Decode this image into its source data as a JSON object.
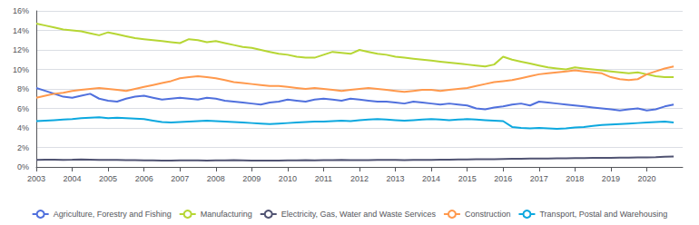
{
  "chart_data": {
    "type": "line",
    "x": [
      2003,
      2003.25,
      2003.5,
      2003.75,
      2004,
      2004.25,
      2004.5,
      2004.75,
      2005,
      2005.25,
      2005.5,
      2005.75,
      2006,
      2006.25,
      2006.5,
      2006.75,
      2007,
      2007.25,
      2007.5,
      2007.75,
      2008,
      2008.25,
      2008.5,
      2008.75,
      2009,
      2009.25,
      2009.5,
      2009.75,
      2010,
      2010.25,
      2010.5,
      2010.75,
      2011,
      2011.25,
      2011.5,
      2011.75,
      2012,
      2012.25,
      2012.5,
      2012.75,
      2013,
      2013.25,
      2013.5,
      2013.75,
      2014,
      2014.25,
      2014.5,
      2014.75,
      2015,
      2015.25,
      2015.5,
      2015.75,
      2016,
      2016.25,
      2016.5,
      2016.75,
      2017,
      2017.25,
      2017.5,
      2017.75,
      2018,
      2018.25,
      2018.5,
      2018.75,
      2019,
      2019.25,
      2019.5,
      2019.75,
      2020,
      2020.25,
      2020.5,
      2020.75
    ],
    "series": [
      {
        "name": "Agriculture, Forestry and Fishing",
        "values": [
          8.1,
          7.8,
          7.5,
          7.2,
          7.1,
          7.3,
          7.5,
          7.0,
          6.8,
          6.7,
          7.0,
          7.2,
          7.3,
          7.1,
          6.9,
          7.0,
          7.1,
          7.0,
          6.9,
          7.1,
          7.0,
          6.8,
          6.7,
          6.6,
          6.5,
          6.4,
          6.6,
          6.7,
          6.9,
          6.8,
          6.7,
          6.9,
          7.0,
          6.9,
          6.8,
          7.0,
          6.9,
          6.8,
          6.7,
          6.7,
          6.6,
          6.5,
          6.7,
          6.6,
          6.5,
          6.4,
          6.5,
          6.4,
          6.3,
          6.0,
          5.9,
          6.1,
          6.2,
          6.4,
          6.5,
          6.3,
          6.7,
          6.6,
          6.5,
          6.4,
          6.3,
          6.2,
          6.1,
          6.0,
          5.9,
          5.8,
          5.9,
          6.0,
          5.8,
          5.9,
          6.2,
          6.4
        ]
      },
      {
        "name": "Manufacturing",
        "values": [
          14.7,
          14.5,
          14.3,
          14.1,
          14.0,
          13.9,
          13.7,
          13.5,
          13.8,
          13.6,
          13.4,
          13.2,
          13.1,
          13.0,
          12.9,
          12.8,
          12.7,
          13.1,
          13.0,
          12.8,
          12.9,
          12.7,
          12.5,
          12.3,
          12.2,
          12.0,
          11.8,
          11.6,
          11.5,
          11.3,
          11.2,
          11.2,
          11.5,
          11.8,
          11.7,
          11.6,
          12.0,
          11.8,
          11.6,
          11.5,
          11.3,
          11.2,
          11.1,
          11.0,
          10.9,
          10.8,
          10.7,
          10.6,
          10.5,
          10.4,
          10.3,
          10.5,
          11.3,
          11.0,
          10.8,
          10.6,
          10.4,
          10.2,
          10.1,
          10.0,
          10.2,
          10.1,
          10.0,
          9.9,
          9.8,
          9.7,
          9.6,
          9.7,
          9.5,
          9.3,
          9.2,
          9.2
        ]
      },
      {
        "name": "Electricity, Gas, Water and Waste Services",
        "values": [
          0.72,
          0.74,
          0.75,
          0.73,
          0.74,
          0.76,
          0.75,
          0.73,
          0.72,
          0.71,
          0.7,
          0.69,
          0.68,
          0.67,
          0.66,
          0.66,
          0.67,
          0.68,
          0.67,
          0.66,
          0.67,
          0.68,
          0.69,
          0.67,
          0.65,
          0.64,
          0.65,
          0.66,
          0.67,
          0.68,
          0.69,
          0.68,
          0.69,
          0.7,
          0.71,
          0.7,
          0.69,
          0.7,
          0.71,
          0.72,
          0.71,
          0.7,
          0.71,
          0.72,
          0.73,
          0.74,
          0.75,
          0.76,
          0.77,
          0.78,
          0.79,
          0.8,
          0.82,
          0.83,
          0.84,
          0.85,
          0.86,
          0.87,
          0.88,
          0.89,
          0.9,
          0.91,
          0.92,
          0.93,
          0.94,
          0.95,
          0.96,
          0.97,
          0.98,
          1.0,
          1.05,
          1.08
        ]
      },
      {
        "name": "Construction",
        "values": [
          7.1,
          7.3,
          7.5,
          7.6,
          7.8,
          7.9,
          8.0,
          8.1,
          8.0,
          7.9,
          7.8,
          8.0,
          8.2,
          8.4,
          8.6,
          8.8,
          9.1,
          9.2,
          9.3,
          9.2,
          9.1,
          8.9,
          8.7,
          8.6,
          8.5,
          8.4,
          8.3,
          8.3,
          8.2,
          8.1,
          8.0,
          8.1,
          8.0,
          7.9,
          7.8,
          7.9,
          8.0,
          8.1,
          8.0,
          7.9,
          7.8,
          7.7,
          7.8,
          7.9,
          7.9,
          7.8,
          7.9,
          8.0,
          8.1,
          8.3,
          8.5,
          8.7,
          8.8,
          8.9,
          9.1,
          9.3,
          9.5,
          9.6,
          9.7,
          9.8,
          9.9,
          9.8,
          9.7,
          9.6,
          9.2,
          9.0,
          8.9,
          9.0,
          9.5,
          9.8,
          10.1,
          10.3
        ]
      },
      {
        "name": "Transport, Postal and Warehousing",
        "values": [
          4.7,
          4.75,
          4.8,
          4.85,
          4.9,
          5.0,
          5.05,
          5.1,
          5.0,
          5.05,
          5.0,
          4.95,
          4.9,
          4.75,
          4.6,
          4.55,
          4.6,
          4.65,
          4.7,
          4.75,
          4.7,
          4.65,
          4.6,
          4.55,
          4.5,
          4.45,
          4.4,
          4.45,
          4.5,
          4.55,
          4.6,
          4.65,
          4.65,
          4.7,
          4.75,
          4.7,
          4.8,
          4.85,
          4.9,
          4.85,
          4.8,
          4.75,
          4.8,
          4.85,
          4.9,
          4.85,
          4.8,
          4.85,
          4.9,
          4.85,
          4.8,
          4.75,
          4.7,
          4.1,
          4.0,
          3.95,
          4.0,
          3.95,
          3.9,
          3.95,
          4.05,
          4.1,
          4.2,
          4.3,
          4.35,
          4.4,
          4.45,
          4.5,
          4.55,
          4.6,
          4.65,
          4.55
        ]
      }
    ],
    "xlim": [
      2003,
      2021
    ],
    "xticks": [
      2003,
      2004,
      2005,
      2006,
      2007,
      2008,
      2009,
      2010,
      2011,
      2012,
      2013,
      2014,
      2015,
      2016,
      2017,
      2018,
      2019,
      2020
    ],
    "ylim": [
      0,
      16
    ],
    "yticks": [
      {
        "value": 0,
        "label": "0%"
      },
      {
        "value": 2,
        "label": "2%"
      },
      {
        "value": 4,
        "label": "4%"
      },
      {
        "value": 6,
        "label": "6%"
      },
      {
        "value": 8,
        "label": "8%"
      },
      {
        "value": 10,
        "label": "10%"
      },
      {
        "value": 12,
        "label": "12%"
      },
      {
        "value": 14,
        "label": "14%"
      },
      {
        "value": 16,
        "label": "16%"
      }
    ],
    "grid": "y",
    "legend": "bottom"
  }
}
